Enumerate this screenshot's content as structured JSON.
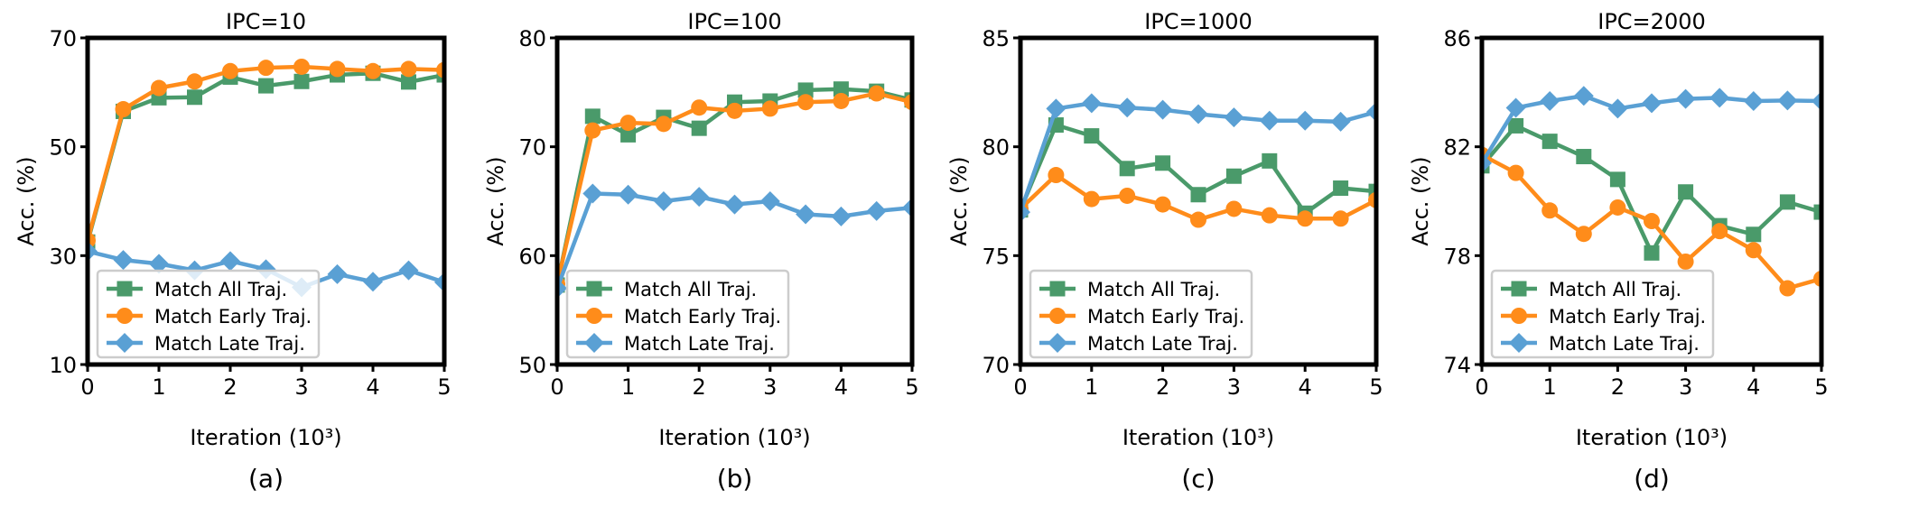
{
  "figure": {
    "panels": [
      "(a)",
      "(b)",
      "(c)",
      "(d)"
    ]
  },
  "chart_data": [
    {
      "type": "line",
      "title": "IPC=10",
      "caption": "(a)",
      "xlabel": "Iteration (10³)",
      "ylabel": "Acc. (%)",
      "xlim": [
        0,
        5
      ],
      "ylim": [
        10,
        70
      ],
      "xticks": [
        0,
        1,
        2,
        3,
        4,
        5
      ],
      "yticks": [
        10,
        30,
        50,
        70
      ],
      "grid": false,
      "legend_position": "lower-left",
      "x": [
        0,
        0.5,
        1,
        1.5,
        2,
        2.5,
        3,
        3.5,
        4,
        4.5,
        5
      ],
      "series": [
        {
          "name": "Match All Traj.",
          "color": "#4a9a6a",
          "marker": "square",
          "values": [
            32.5,
            56.5,
            59.0,
            59.1,
            62.8,
            61.2,
            62.0,
            63.2,
            63.5,
            61.9,
            63.2
          ]
        },
        {
          "name": "Match Early Traj.",
          "color": "#ff8c1a",
          "marker": "circle",
          "values": [
            32.8,
            56.9,
            60.8,
            62.0,
            63.9,
            64.5,
            64.7,
            64.3,
            63.9,
            64.3,
            64.1
          ]
        },
        {
          "name": "Match Late Traj.",
          "color": "#5aa0d4",
          "marker": "diamond",
          "values": [
            30.8,
            29.2,
            28.5,
            27.3,
            29.0,
            27.5,
            24.2,
            26.6,
            25.2,
            27.3,
            25.1
          ]
        }
      ]
    },
    {
      "type": "line",
      "title": "IPC=100",
      "caption": "(b)",
      "xlabel": "Iteration (10³)",
      "ylabel": "Acc. (%)",
      "xlim": [
        0,
        5
      ],
      "ylim": [
        50,
        80
      ],
      "xticks": [
        0,
        1,
        2,
        3,
        4,
        5
      ],
      "yticks": [
        50,
        60,
        70,
        80
      ],
      "grid": false,
      "legend_position": "lower-left",
      "x": [
        0,
        0.5,
        1,
        1.5,
        2,
        2.5,
        3,
        3.5,
        4,
        4.5,
        5
      ],
      "series": [
        {
          "name": "Match All Traj.",
          "color": "#4a9a6a",
          "marker": "square",
          "values": [
            57.3,
            72.8,
            71.1,
            72.7,
            71.7,
            74.1,
            74.2,
            75.2,
            75.3,
            75.1,
            74.3
          ]
        },
        {
          "name": "Match Early Traj.",
          "color": "#ff8c1a",
          "marker": "circle",
          "values": [
            57.4,
            71.5,
            72.2,
            72.1,
            73.6,
            73.3,
            73.5,
            74.1,
            74.2,
            74.9,
            74.1
          ]
        },
        {
          "name": "Match Late Traj.",
          "color": "#5aa0d4",
          "marker": "diamond",
          "values": [
            57.0,
            65.7,
            65.6,
            65.0,
            65.4,
            64.7,
            65.0,
            63.8,
            63.6,
            64.1,
            64.4
          ]
        }
      ]
    },
    {
      "type": "line",
      "title": "IPC=1000",
      "caption": "(c)",
      "xlabel": "Iteration (10³)",
      "ylabel": "Acc. (%)",
      "xlim": [
        0,
        5
      ],
      "ylim": [
        70,
        85
      ],
      "xticks": [
        0,
        1,
        2,
        3,
        4,
        5
      ],
      "yticks": [
        70,
        75,
        80,
        85
      ],
      "grid": false,
      "legend_position": "lower-left",
      "x": [
        0,
        0.5,
        1,
        1.5,
        2,
        2.5,
        3,
        3.5,
        4,
        4.5,
        5
      ],
      "series": [
        {
          "name": "Match All Traj.",
          "color": "#4a9a6a",
          "marker": "square",
          "values": [
            77.1,
            81.0,
            80.5,
            79.0,
            79.25,
            77.8,
            78.65,
            79.35,
            76.95,
            78.1,
            77.95
          ]
        },
        {
          "name": "Match Early Traj.",
          "color": "#ff8c1a",
          "marker": "circle",
          "values": [
            77.15,
            78.7,
            77.6,
            77.75,
            77.35,
            76.65,
            77.15,
            76.85,
            76.7,
            76.7,
            77.55
          ]
        },
        {
          "name": "Match Late Traj.",
          "color": "#5aa0d4",
          "marker": "diamond",
          "values": [
            77.0,
            81.75,
            82.0,
            81.8,
            81.7,
            81.5,
            81.35,
            81.2,
            81.2,
            81.15,
            81.6
          ]
        }
      ]
    },
    {
      "type": "line",
      "title": "IPC=2000",
      "caption": "(d)",
      "xlabel": "Iteration (10³)",
      "ylabel": "Acc. (%)",
      "xlim": [
        0,
        5
      ],
      "ylim": [
        74,
        86
      ],
      "xticks": [
        0,
        1,
        2,
        3,
        4,
        5
      ],
      "yticks": [
        74,
        78,
        82,
        86
      ],
      "grid": false,
      "legend_position": "lower-left",
      "x": [
        0,
        0.5,
        1,
        1.5,
        2,
        2.5,
        3,
        3.5,
        4,
        4.5,
        5
      ],
      "series": [
        {
          "name": "Match All Traj.",
          "color": "#4a9a6a",
          "marker": "square",
          "values": [
            81.3,
            82.77,
            82.2,
            81.64,
            80.8,
            78.1,
            80.34,
            79.1,
            78.78,
            79.97,
            79.6
          ]
        },
        {
          "name": "Match Early Traj.",
          "color": "#ff8c1a",
          "marker": "circle",
          "values": [
            81.7,
            81.04,
            79.66,
            78.8,
            79.77,
            79.27,
            77.78,
            78.9,
            78.2,
            76.8,
            77.15
          ]
        },
        {
          "name": "Match Late Traj.",
          "color": "#5aa0d4",
          "marker": "diamond",
          "values": [
            81.4,
            83.43,
            83.68,
            83.87,
            83.4,
            83.6,
            83.76,
            83.8,
            83.68,
            83.7,
            83.68
          ]
        }
      ]
    }
  ]
}
